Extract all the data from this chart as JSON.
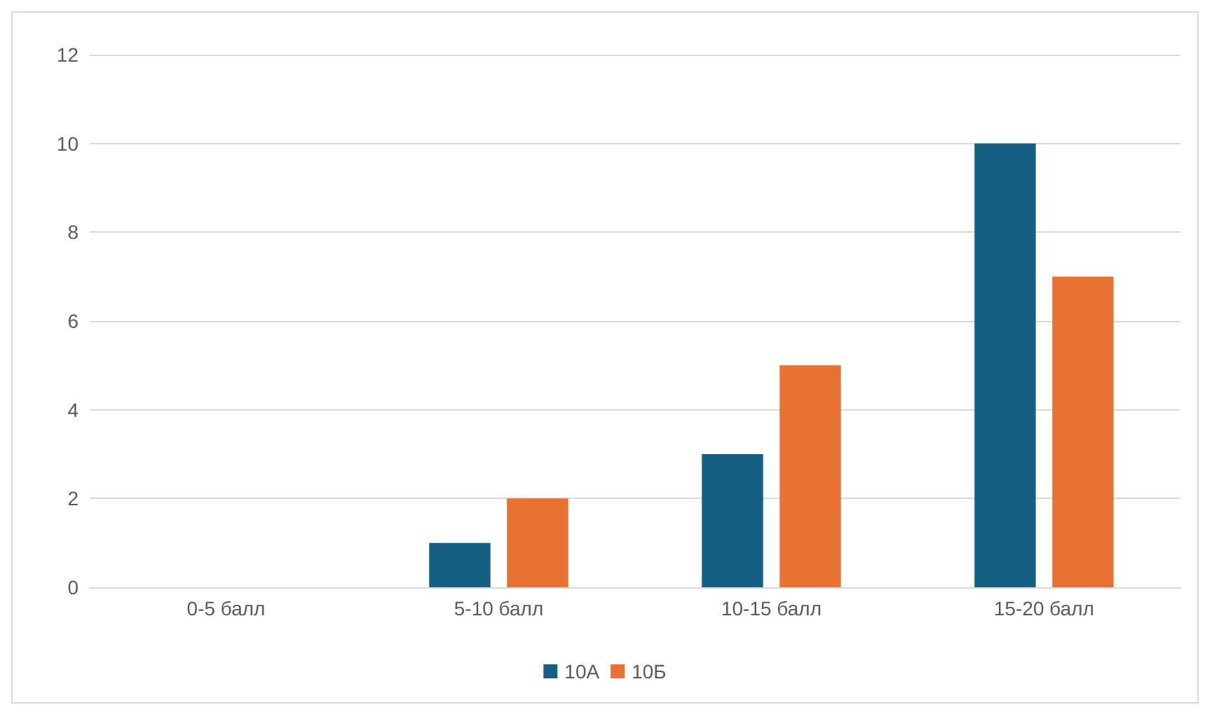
{
  "chart_data": {
    "type": "bar",
    "categories": [
      "0-5 балл",
      "5-10 балл",
      "10-15 балл",
      "15-20 балл"
    ],
    "series": [
      {
        "name": "10А",
        "color": "#156082",
        "values": [
          0,
          1,
          3,
          10
        ]
      },
      {
        "name": "10Б",
        "color": "#e97132",
        "values": [
          0,
          2,
          5,
          7
        ]
      }
    ],
    "ylim": [
      0,
      12
    ],
    "yticks": [
      0,
      2,
      4,
      6,
      8,
      10,
      12
    ],
    "grid": "y",
    "legend": "bottom"
  }
}
